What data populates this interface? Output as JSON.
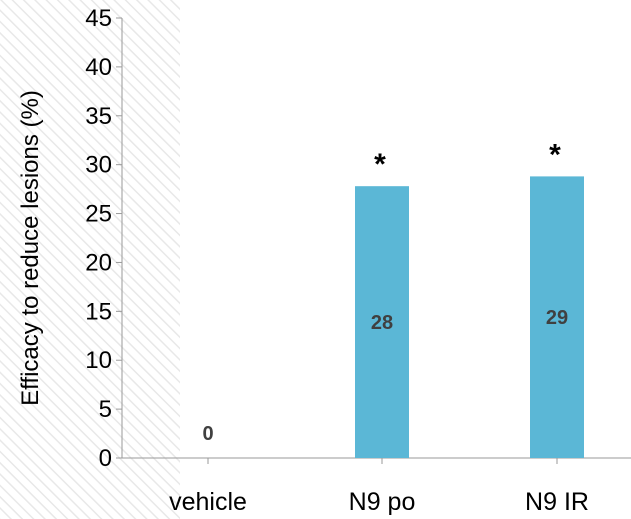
{
  "chart_data": {
    "type": "bar",
    "title": "",
    "xlabel": "",
    "ylabel": "Efficacy to reduce lesions (%)",
    "categories": [
      "vehicle",
      "N9 po",
      "N9 IR"
    ],
    "values": [
      0,
      28,
      29
    ],
    "data_labels": [
      "0",
      "28",
      "29"
    ],
    "plotted_values": [
      0,
      27.8,
      28.8
    ],
    "significance": [
      "",
      "*",
      "*"
    ],
    "ylim": [
      0,
      45
    ],
    "yticks": [
      0,
      5,
      10,
      15,
      20,
      25,
      30,
      35,
      40,
      45
    ],
    "grid": false,
    "legend": "none",
    "colors": {
      "bar": "#5bb7d6",
      "axis": "#9a9a9a",
      "hatch": "#e6e6e6"
    }
  }
}
